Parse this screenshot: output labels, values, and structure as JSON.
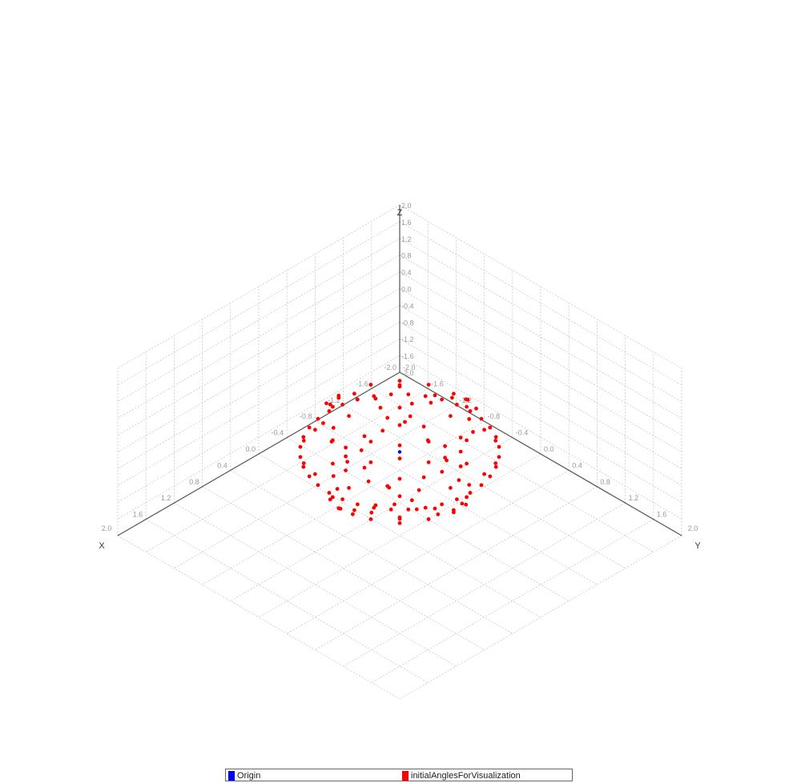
{
  "chart_data": {
    "type": "scatter",
    "projection": "isometric-3d",
    "axes": {
      "x": {
        "label": "X",
        "range": [
          -2.0,
          2.0
        ],
        "ticks": [
          "2.0",
          "1.6",
          "1.2",
          "0.8",
          "0.4",
          "0.0",
          "-0.4",
          "-0.8",
          "-1.2",
          "-1.6",
          "-2.0"
        ],
        "tick_values": [
          2.0,
          1.6,
          1.2,
          0.8,
          0.4,
          0.0,
          -0.4,
          -0.8,
          -1.2,
          -1.6,
          -2.0
        ]
      },
      "y": {
        "label": "Y",
        "range": [
          -2.0,
          2.0
        ],
        "ticks": [
          "2.0",
          "1.6",
          "1.2",
          "0.8",
          "0.4",
          "0.0",
          "-0.4",
          "-0.8",
          "-1.2",
          "-1.6",
          "-2.0"
        ],
        "tick_values": [
          2.0,
          1.6,
          1.2,
          0.8,
          0.4,
          0.0,
          -0.4,
          -0.8,
          -1.2,
          -1.6,
          -2.0
        ]
      },
      "z": {
        "label": "Z",
        "range": [
          -2.0,
          2.0
        ],
        "ticks": [
          "2.0",
          "1.6",
          "1.2",
          "0.8",
          "0.4",
          "0.0",
          "-0.4",
          "-0.8",
          "-1.2",
          "-1.6",
          "-2.0"
        ],
        "tick_values": [
          2.0,
          1.6,
          1.2,
          0.8,
          0.4,
          0.0,
          -0.4,
          -0.8,
          -1.2,
          -1.6,
          -2.0
        ]
      }
    },
    "grid": true,
    "legend": {
      "placement": "bottom-center"
    },
    "series": [
      {
        "name": "Origin",
        "color": "#0000ff",
        "points": [
          [
            0,
            0,
            0
          ]
        ]
      },
      {
        "name": "initialAnglesForVisualization",
        "color": "#ff0000",
        "points": [
          [
            1.0,
            0.0,
            0.0
          ],
          [
            0.985,
            0.174,
            0.0
          ],
          [
            0.94,
            0.342,
            0.0
          ],
          [
            0.866,
            0.5,
            0.0
          ],
          [
            0.766,
            0.643,
            0.0
          ],
          [
            0.643,
            0.766,
            0.0
          ],
          [
            0.5,
            0.866,
            0.0
          ],
          [
            0.342,
            0.94,
            0.0
          ],
          [
            0.174,
            0.985,
            0.0
          ],
          [
            0.0,
            1.0,
            0.0
          ],
          [
            -0.174,
            0.985,
            0.0
          ],
          [
            -0.342,
            0.94,
            0.0
          ],
          [
            -0.5,
            0.866,
            0.0
          ],
          [
            -0.643,
            0.766,
            0.0
          ],
          [
            -0.766,
            0.643,
            0.0
          ],
          [
            -0.866,
            0.5,
            0.0
          ],
          [
            -0.94,
            0.342,
            0.0
          ],
          [
            -0.985,
            0.174,
            0.0
          ],
          [
            -1.0,
            0.0,
            0.0
          ],
          [
            -0.985,
            -0.174,
            0.0
          ],
          [
            -0.94,
            -0.342,
            0.0
          ],
          [
            -0.866,
            -0.5,
            0.0
          ],
          [
            -0.766,
            -0.643,
            0.0
          ],
          [
            -0.643,
            -0.766,
            0.0
          ],
          [
            -0.5,
            -0.866,
            0.0
          ],
          [
            -0.342,
            -0.94,
            0.0
          ],
          [
            -0.174,
            -0.985,
            0.0
          ],
          [
            0.0,
            -1.0,
            0.0
          ],
          [
            0.174,
            -0.985,
            0.0
          ],
          [
            0.342,
            -0.94,
            0.0
          ],
          [
            0.5,
            -0.866,
            0.0
          ],
          [
            0.643,
            -0.766,
            0.0
          ],
          [
            0.766,
            -0.643,
            0.0
          ],
          [
            0.866,
            -0.5,
            0.0
          ],
          [
            0.94,
            -0.342,
            0.0
          ],
          [
            0.985,
            -0.174,
            0.0
          ],
          [
            0.0,
            0.15,
            1.0
          ],
          [
            0.0,
            -0.15,
            -1.0
          ],
          [
            0.174,
            0.0,
            0.985
          ],
          [
            0.342,
            0.1,
            0.94
          ],
          [
            0.5,
            0.0,
            0.866
          ],
          [
            0.643,
            0.1,
            0.766
          ],
          [
            0.766,
            0.0,
            0.643
          ],
          [
            0.866,
            0.1,
            0.5
          ],
          [
            0.94,
            0.0,
            0.342
          ],
          [
            0.985,
            0.1,
            0.174
          ],
          [
            0.985,
            0.0,
            -0.174
          ],
          [
            0.94,
            0.1,
            -0.342
          ],
          [
            0.866,
            0.0,
            -0.5
          ],
          [
            0.766,
            0.1,
            -0.643
          ],
          [
            0.643,
            0.0,
            -0.766
          ],
          [
            0.5,
            0.1,
            -0.866
          ],
          [
            0.342,
            0.0,
            -0.94
          ],
          [
            0.174,
            0.1,
            -0.985
          ],
          [
            -0.174,
            0.0,
            0.985
          ],
          [
            -0.342,
            0.1,
            0.94
          ],
          [
            -0.5,
            0.0,
            0.866
          ],
          [
            -0.643,
            0.1,
            0.766
          ],
          [
            -0.766,
            0.0,
            0.643
          ],
          [
            -0.866,
            0.1,
            0.5
          ],
          [
            -0.94,
            0.0,
            0.342
          ],
          [
            -0.985,
            0.1,
            0.174
          ],
          [
            -0.985,
            0.0,
            -0.174
          ],
          [
            -0.94,
            0.1,
            -0.342
          ],
          [
            -0.866,
            0.0,
            -0.5
          ],
          [
            -0.766,
            0.1,
            -0.643
          ],
          [
            -0.643,
            0.0,
            -0.766
          ],
          [
            -0.5,
            0.1,
            -0.866
          ],
          [
            -0.342,
            0.0,
            -0.94
          ],
          [
            -0.174,
            0.1,
            -0.985
          ],
          [
            0.1,
            0.174,
            0.985
          ],
          [
            0.0,
            0.342,
            0.94
          ],
          [
            0.1,
            0.5,
            0.866
          ],
          [
            0.0,
            0.643,
            0.766
          ],
          [
            0.1,
            0.766,
            0.643
          ],
          [
            0.0,
            0.866,
            0.5
          ],
          [
            0.1,
            0.94,
            0.342
          ],
          [
            0.0,
            0.985,
            0.174
          ],
          [
            0.1,
            0.985,
            -0.174
          ],
          [
            0.0,
            0.94,
            -0.342
          ],
          [
            0.1,
            0.866,
            -0.5
          ],
          [
            0.0,
            0.766,
            -0.643
          ],
          [
            0.1,
            0.643,
            -0.766
          ],
          [
            0.0,
            0.5,
            -0.866
          ],
          [
            0.1,
            0.342,
            -0.94
          ],
          [
            0.0,
            0.174,
            -0.985
          ],
          [
            0.1,
            -0.174,
            0.985
          ],
          [
            0.0,
            -0.342,
            0.94
          ],
          [
            0.1,
            -0.5,
            0.866
          ],
          [
            0.0,
            -0.643,
            0.766
          ],
          [
            0.1,
            -0.766,
            0.643
          ],
          [
            0.0,
            -0.866,
            0.5
          ],
          [
            0.1,
            -0.94,
            0.342
          ],
          [
            0.0,
            -0.985,
            0.174
          ],
          [
            0.1,
            -0.985,
            -0.174
          ],
          [
            0.0,
            -0.94,
            -0.342
          ],
          [
            0.1,
            -0.866,
            -0.5
          ],
          [
            0.0,
            -0.766,
            -0.643
          ],
          [
            0.1,
            -0.643,
            -0.766
          ],
          [
            0.0,
            -0.5,
            -0.866
          ],
          [
            0.1,
            -0.342,
            -0.94
          ],
          [
            0.0,
            -0.174,
            -0.985
          ],
          [
            0.36,
            0.36,
            0.86
          ],
          [
            0.36,
            -0.36,
            0.86
          ],
          [
            -0.36,
            0.36,
            0.86
          ],
          [
            -0.36,
            -0.36,
            0.86
          ],
          [
            0.36,
            0.36,
            -0.86
          ],
          [
            0.36,
            -0.36,
            -0.86
          ],
          [
            -0.36,
            0.36,
            -0.86
          ],
          [
            -0.36,
            -0.36,
            -0.86
          ],
          [
            0.6,
            0.6,
            0.53
          ],
          [
            0.6,
            -0.6,
            0.53
          ],
          [
            -0.6,
            0.6,
            0.53
          ],
          [
            -0.6,
            -0.6,
            0.53
          ],
          [
            0.6,
            0.6,
            -0.53
          ],
          [
            0.6,
            -0.6,
            -0.53
          ],
          [
            -0.6,
            0.6,
            -0.53
          ],
          [
            -0.6,
            -0.6,
            -0.53
          ],
          [
            0.68,
            0.68,
            0.27
          ],
          [
            0.68,
            -0.68,
            0.27
          ],
          [
            -0.68,
            0.68,
            0.27
          ],
          [
            -0.68,
            -0.68,
            0.27
          ],
          [
            0.68,
            0.68,
            -0.27
          ],
          [
            0.68,
            -0.68,
            -0.27
          ],
          [
            -0.68,
            0.68,
            -0.27
          ],
          [
            -0.68,
            -0.68,
            -0.27
          ],
          [
            0.27,
            0.68,
            0.68
          ],
          [
            -0.27,
            0.68,
            0.68
          ],
          [
            0.27,
            -0.68,
            0.68
          ],
          [
            -0.27,
            -0.68,
            0.68
          ],
          [
            0.27,
            0.68,
            -0.68
          ],
          [
            -0.27,
            0.68,
            -0.68
          ],
          [
            0.27,
            -0.68,
            -0.68
          ],
          [
            -0.27,
            -0.68,
            -0.68
          ],
          [
            0.68,
            0.27,
            0.68
          ],
          [
            -0.68,
            0.27,
            0.68
          ],
          [
            0.68,
            -0.27,
            0.68
          ],
          [
            -0.68,
            -0.27,
            0.68
          ],
          [
            0.68,
            0.27,
            -0.68
          ],
          [
            -0.68,
            0.27,
            -0.68
          ],
          [
            0.68,
            -0.27,
            -0.68
          ],
          [
            -0.68,
            -0.27,
            -0.68
          ]
        ]
      }
    ]
  }
}
